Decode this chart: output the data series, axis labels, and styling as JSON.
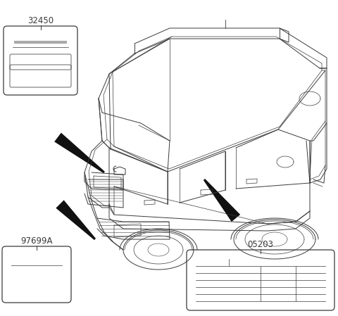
{
  "bg_color": "#ffffff",
  "line_color": "#3a3a3a",
  "label_32450": "32450",
  "label_97699A": "97699A",
  "label_05203": "05203",
  "figsize": [
    4.8,
    4.49
  ],
  "dpi": 100
}
